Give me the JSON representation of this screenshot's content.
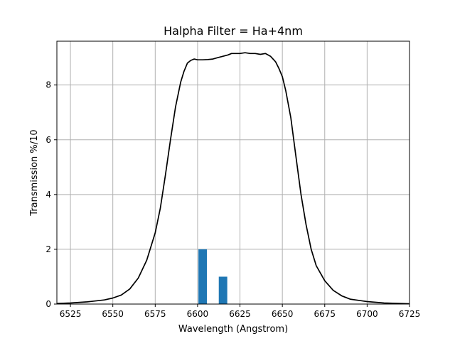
{
  "chart_data": {
    "type": "line",
    "title": "Halpha Filter = Ha+4nm",
    "xlabel": "Wavelength (Angstrom)",
    "ylabel": "Transmission %/10",
    "xlim": [
      6517,
      6725
    ],
    "ylim": [
      0,
      9.6
    ],
    "xticks": [
      6525,
      6550,
      6575,
      6600,
      6625,
      6650,
      6675,
      6700,
      6725
    ],
    "yticks": [
      0,
      2,
      4,
      6,
      8
    ],
    "grid": true,
    "colors": {
      "curve": "#000000",
      "bars": "#1f77b4"
    },
    "bars": [
      {
        "x": 6603,
        "width": 5,
        "value": 2.0
      },
      {
        "x": 6615,
        "width": 5,
        "value": 1.0
      }
    ],
    "series": [
      {
        "x": [
          6517,
          6525,
          6535,
          6545,
          6550,
          6555,
          6560,
          6565,
          6570,
          6575,
          6578,
          6581,
          6584,
          6587,
          6590,
          6592,
          6594,
          6596,
          6598,
          6600,
          6603,
          6606,
          6609,
          6612,
          6615,
          6618,
          6620,
          6625,
          6628,
          6631,
          6634,
          6637,
          6640,
          6643,
          6646,
          6648,
          6650,
          6652,
          6655,
          6658,
          6661,
          6664,
          6667,
          6670,
          6675,
          6680,
          6685,
          6690,
          6700,
          6710,
          6725
        ],
        "y": [
          0.02,
          0.04,
          0.08,
          0.15,
          0.22,
          0.33,
          0.55,
          0.95,
          1.6,
          2.6,
          3.5,
          4.7,
          6.0,
          7.2,
          8.1,
          8.5,
          8.8,
          8.9,
          8.95,
          8.92,
          8.92,
          8.93,
          8.95,
          9.0,
          9.05,
          9.1,
          9.15,
          9.15,
          9.18,
          9.15,
          9.15,
          9.12,
          9.15,
          9.05,
          8.85,
          8.6,
          8.3,
          7.8,
          6.8,
          5.4,
          4.0,
          2.9,
          2.0,
          1.4,
          0.85,
          0.5,
          0.3,
          0.18,
          0.09,
          0.04,
          0.01
        ]
      }
    ]
  }
}
